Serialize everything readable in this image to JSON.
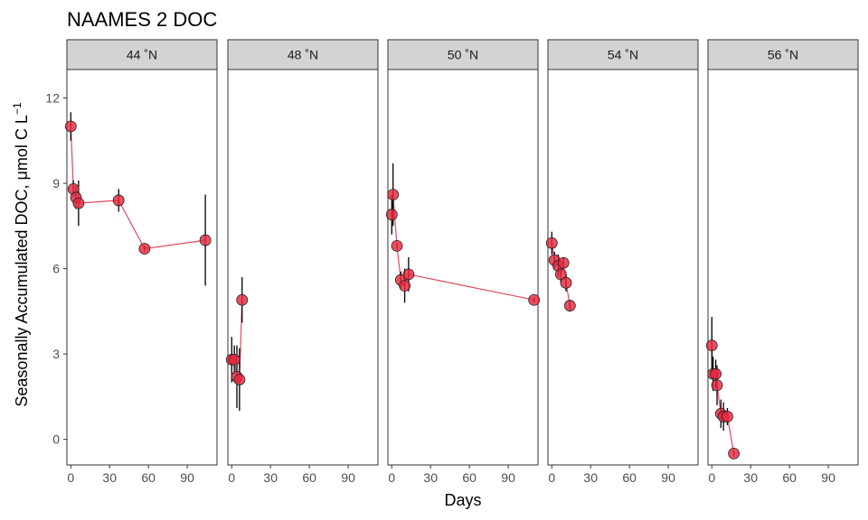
{
  "chart_data": {
    "type": "scatter",
    "title": "NAAMES 2 DOC",
    "xlabel": "Days",
    "ylabel": "Seasonally Accumulated DOC, μmol C L⁻¹",
    "ylabel_base": "Seasonally Accumulated DOC, μmol C L",
    "ylabel_sup": "−1",
    "xlim": [
      -3,
      113
    ],
    "ylim": [
      -0.9,
      13
    ],
    "x_ticks": [
      0,
      30,
      60,
      90
    ],
    "y_ticks": [
      0,
      3,
      6,
      9,
      12
    ],
    "grid": false,
    "legend": "none",
    "point_color": "#e8283f",
    "line_color": "#e34a5c",
    "errorbar_color": "#000000",
    "panels": [
      {
        "label": "44 ˚N",
        "points": [
          {
            "x": 0,
            "y": 11.0,
            "err": 0.5
          },
          {
            "x": 2,
            "y": 8.8,
            "err": 0.3
          },
          {
            "x": 4,
            "y": 8.5,
            "err": 0.4
          },
          {
            "x": 6,
            "y": 8.3,
            "err": 0.8
          },
          {
            "x": 37,
            "y": 8.4,
            "err": 0.4
          },
          {
            "x": 57,
            "y": 6.7,
            "err": 0.1
          },
          {
            "x": 104,
            "y": 7.0,
            "err": 1.6
          }
        ]
      },
      {
        "label": "48 ˚N",
        "points": [
          {
            "x": 0,
            "y": 2.8,
            "err": 0.8
          },
          {
            "x": 2,
            "y": 2.8,
            "err": 0.5
          },
          {
            "x": 4,
            "y": 2.2,
            "err": 1.1
          },
          {
            "x": 6,
            "y": 2.1,
            "err": 1.1
          },
          {
            "x": 8,
            "y": 4.9,
            "err": 0.8
          }
        ]
      },
      {
        "label": "50 ˚N",
        "points": [
          {
            "x": 0,
            "y": 7.9,
            "err": 0.7
          },
          {
            "x": 1,
            "y": 8.6,
            "err": 1.1
          },
          {
            "x": 4,
            "y": 6.8,
            "err": 0.1
          },
          {
            "x": 7,
            "y": 5.6,
            "err": 0.3
          },
          {
            "x": 10,
            "y": 5.4,
            "err": 0.6
          },
          {
            "x": 13,
            "y": 5.8,
            "err": 0.6
          },
          {
            "x": 110,
            "y": 4.9,
            "err": 0.1
          }
        ]
      },
      {
        "label": "54 ˚N",
        "points": [
          {
            "x": 0,
            "y": 6.9,
            "err": 0.4
          },
          {
            "x": 2,
            "y": 6.3,
            "err": 0.3
          },
          {
            "x": 5,
            "y": 6.1,
            "err": 0.4
          },
          {
            "x": 7,
            "y": 5.8,
            "err": 0.3
          },
          {
            "x": 9,
            "y": 6.2,
            "err": 0.2
          },
          {
            "x": 11,
            "y": 5.5,
            "err": 0.3
          },
          {
            "x": 14,
            "y": 4.7,
            "err": 0.2
          }
        ]
      },
      {
        "label": "56 ˚N",
        "points": [
          {
            "x": 0,
            "y": 3.3,
            "err": 1.0
          },
          {
            "x": 1,
            "y": 2.3,
            "err": 0.6
          },
          {
            "x": 3,
            "y": 2.3,
            "err": 0.5
          },
          {
            "x": 4,
            "y": 1.9,
            "err": 0.7
          },
          {
            "x": 7,
            "y": 0.9,
            "err": 0.5
          },
          {
            "x": 9,
            "y": 0.8,
            "err": 0.5
          },
          {
            "x": 12,
            "y": 0.8,
            "err": 0.3
          },
          {
            "x": 17,
            "y": -0.5,
            "err": 0.1
          }
        ]
      }
    ]
  }
}
